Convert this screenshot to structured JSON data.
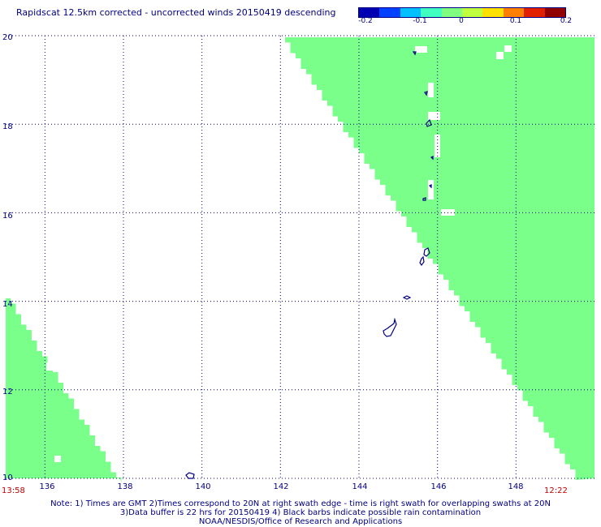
{
  "title": "Rapidscat 12.5km corrected - uncorrected winds 20150419 descending",
  "colorbar": {
    "labels": [
      "-0.2",
      "-0.1",
      "0",
      "0.1",
      "0.2"
    ],
    "colors": [
      "#0000b0",
      "#0040ff",
      "#00c0ff",
      "#40ffc0",
      "#80ff80",
      "#c0ff40",
      "#ffe000",
      "#ff8000",
      "#e02000",
      "#900000"
    ]
  },
  "map": {
    "lon_ticks": [
      "136",
      "138",
      "140",
      "142",
      "144",
      "146",
      "148"
    ],
    "lat_ticks": [
      "20",
      "18",
      "16",
      "14",
      "12",
      "10"
    ],
    "swath_color": "#7aff8a",
    "coast_color": "#000080"
  },
  "times": {
    "left": "13:58",
    "right": "12:22"
  },
  "chart_data": {
    "type": "heatmap",
    "title": "Rapidscat 12.5km corrected - uncorrected winds 20150419 descending",
    "xlim": [
      135,
      150
    ],
    "ylim": [
      10,
      20
    ],
    "x_ticks": [
      136,
      138,
      140,
      142,
      144,
      146,
      148
    ],
    "y_ticks": [
      20,
      18,
      16,
      14,
      12,
      10
    ],
    "colorbar_range": [
      -0.2,
      0.2
    ],
    "dominant_value": 0,
    "swaths": [
      {
        "edge_start": [
          142.1,
          20.0
        ],
        "edge_end": [
          149.8,
          10.4
        ],
        "side": "east"
      },
      {
        "edge_start": [
          135.0,
          14.2
        ],
        "edge_end": [
          137.9,
          10.0
        ],
        "side": "west"
      }
    ]
  },
  "notes": [
    "Note: 1) Times are GMT 2)Times correspond to 20N at right swath edge - time is right swath for overlapping swaths at 20N",
    "3)Data buffer is 22 hrs for 20150419 4) Black barbs indicate possible rain contamination",
    "NOAA/NESDIS/Office of Research and Applications"
  ]
}
